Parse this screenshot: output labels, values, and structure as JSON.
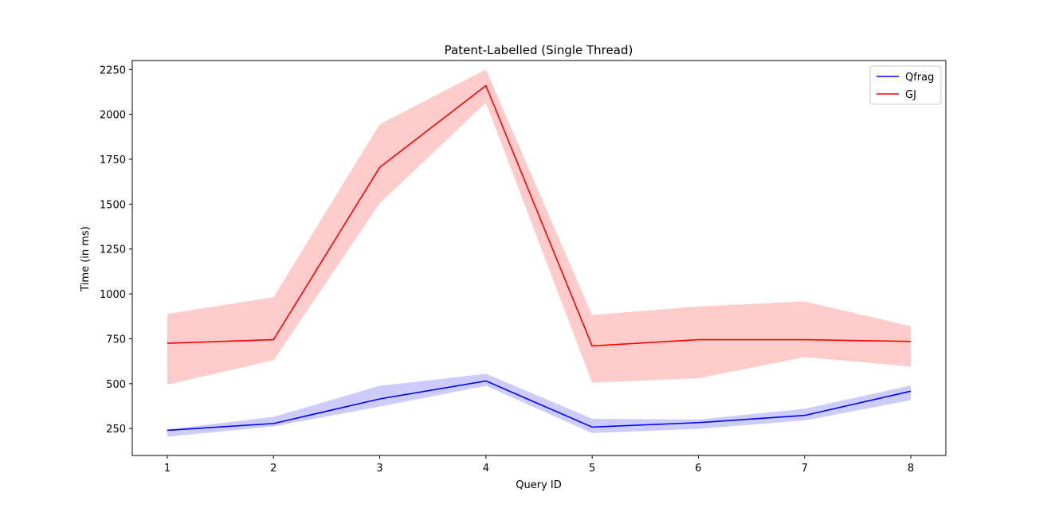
{
  "chart_data": {
    "type": "line",
    "title": "Patent-Labelled (Single Thread)",
    "xlabel": "Query ID",
    "ylabel": "Time (in ms)",
    "x": [
      1,
      2,
      3,
      4,
      5,
      6,
      7,
      8
    ],
    "xticks": [
      "1",
      "2",
      "3",
      "4",
      "5",
      "6",
      "7",
      "8"
    ],
    "yticks": [
      "250",
      "500",
      "750",
      "1000",
      "1250",
      "1500",
      "1750",
      "2000",
      "2250"
    ],
    "ytick_values": [
      250,
      500,
      750,
      1000,
      1250,
      1500,
      1750,
      2000,
      2250
    ],
    "xlim": [
      0.67,
      8.33
    ],
    "ylim": [
      100,
      2300
    ],
    "legend_position": "top-right",
    "series": [
      {
        "name": "Qfrag",
        "color": "#0000ff",
        "band_color": "#ccccff",
        "values": [
          240,
          278,
          415,
          515,
          258,
          283,
          323,
          458
        ],
        "lower": [
          205,
          262,
          372,
          488,
          225,
          248,
          295,
          408
        ],
        "upper": [
          245,
          315,
          488,
          555,
          305,
          300,
          360,
          490
        ]
      },
      {
        "name": "GJ",
        "color": "#ff0000",
        "band_color": "#ffcccc",
        "values": [
          725,
          745,
          1705,
          2160,
          710,
          745,
          745,
          735
        ],
        "lower": [
          495,
          630,
          1505,
          2065,
          505,
          530,
          648,
          595
        ],
        "upper": [
          888,
          982,
          1945,
          2250,
          882,
          930,
          958,
          820
        ]
      }
    ]
  }
}
